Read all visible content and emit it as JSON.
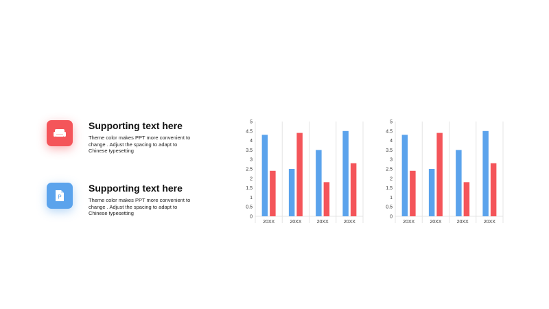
{
  "items": [
    {
      "title": "Supporting text here",
      "text": "Theme  color makes PPT more convenient to change . Adjust the spacing to adapt to Chinese typesetting",
      "icon": "sofa-icon",
      "color": "#f4555a"
    },
    {
      "title": "Supporting text here",
      "text": "Theme  color makes PPT more convenient to change . Adjust the spacing to adapt to Chinese typesetting",
      "icon": "document-icon",
      "color": "#5ba3ec"
    }
  ],
  "colors": {
    "series_blue": "#5ba3ec",
    "series_red": "#f4555a",
    "grid": "#e4e4e4"
  },
  "chart_data": [
    {
      "type": "bar",
      "title": "",
      "xlabel": "",
      "ylabel": "",
      "ylim": [
        0,
        5
      ],
      "yticks": [
        0,
        0.5,
        1,
        1.5,
        2,
        2.5,
        3,
        3.5,
        4,
        4.5,
        5
      ],
      "categories": [
        "20XX",
        "20XX",
        "20XX",
        "20XX"
      ],
      "series": [
        {
          "values": [
            4.3,
            2.5,
            3.5,
            4.5
          ],
          "color": "#5ba3ec"
        },
        {
          "values": [
            2.4,
            4.4,
            1.8,
            2.8
          ],
          "color": "#f4555a"
        }
      ],
      "legend": "none",
      "grid": "vertical category separators"
    },
    {
      "type": "bar",
      "title": "",
      "xlabel": "",
      "ylabel": "",
      "ylim": [
        0,
        5
      ],
      "yticks": [
        0,
        0.5,
        1,
        1.5,
        2,
        2.5,
        3,
        3.5,
        4,
        4.5,
        5
      ],
      "categories": [
        "20XX",
        "20XX",
        "20XX",
        "20XX"
      ],
      "series": [
        {
          "values": [
            4.3,
            2.5,
            3.5,
            4.5
          ],
          "color": "#5ba3ec"
        },
        {
          "values": [
            2.4,
            4.4,
            1.8,
            2.8
          ],
          "color": "#f4555a"
        }
      ],
      "legend": "none",
      "grid": "vertical category separators"
    }
  ]
}
